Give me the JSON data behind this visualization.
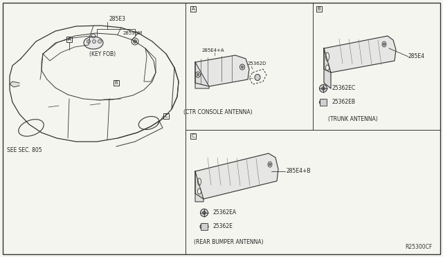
{
  "bg_color": "#f5f5f0",
  "border_color": "#333333",
  "ref_code": "R25300CF",
  "sections": {
    "main": {
      "see_sec": "SEE SEC. 805",
      "key_fob_part": "285E3",
      "key_fob_sub": "28599M",
      "key_fob_label": "(KEY FOB)"
    },
    "panel_a": {
      "label": "A",
      "part1": "285E4+A",
      "part2": "25362D",
      "caption": "(CTR CONSOLE ANTENNA)"
    },
    "panel_b": {
      "label": "B",
      "part1": "285E4",
      "part2": "25362EC",
      "part3": "25362EB",
      "caption": "(TRUNK ANTENNA)"
    },
    "panel_c": {
      "label": "C",
      "part1": "285E4+B",
      "part2": "25362EA",
      "part3": "25362E",
      "caption": "(REAR BUMPER ANTENNA)"
    }
  }
}
